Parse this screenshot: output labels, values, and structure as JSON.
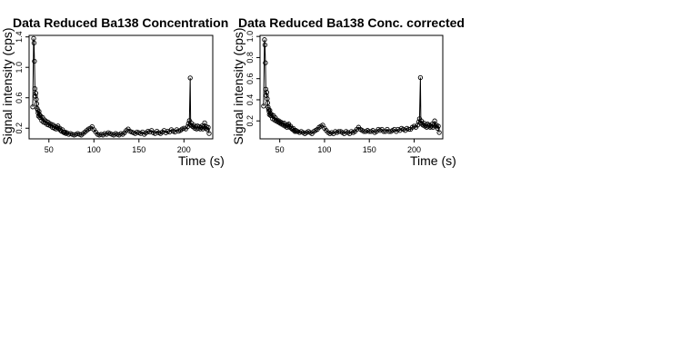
{
  "chart_data": [
    {
      "type": "scatter",
      "title": "Data Reduced Ba138 Concentration",
      "xlabel": "Time (s)",
      "ylabel": "Signal intensity (cps)",
      "xlim": [
        28,
        232
      ],
      "ylim": [
        0.06,
        1.42
      ],
      "xticks": [
        50,
        100,
        150,
        200
      ],
      "yticks": [
        0.2,
        0.6,
        1.0,
        1.4
      ],
      "xtick_labels": [
        "50",
        "100",
        "150",
        "200"
      ],
      "ytick_labels": [
        "0.2",
        "0.6",
        "1.0",
        "1.4"
      ],
      "grid": false,
      "legend": "none",
      "marker": "open-circle",
      "connected": true,
      "series": [
        {
          "points": [
            [
              32,
              0.48
            ],
            [
              33,
              1.38
            ],
            [
              33.5,
              1.32
            ],
            [
              34,
              1.08
            ],
            [
              34.5,
              0.72
            ],
            [
              35,
              0.62
            ],
            [
              35.5,
              0.66
            ],
            [
              36,
              0.58
            ],
            [
              36.5,
              0.52
            ],
            [
              37,
              0.46
            ],
            [
              37.5,
              0.44
            ],
            [
              38,
              0.4
            ],
            [
              38.5,
              0.36
            ],
            [
              39,
              0.42
            ],
            [
              39.5,
              0.38
            ],
            [
              40,
              0.34
            ],
            [
              41,
              0.36
            ],
            [
              42,
              0.3
            ],
            [
              43,
              0.34
            ],
            [
              44,
              0.28
            ],
            [
              45,
              0.31
            ],
            [
              46,
              0.27
            ],
            [
              47,
              0.29
            ],
            [
              48,
              0.25
            ],
            [
              49,
              0.28
            ],
            [
              50,
              0.24
            ],
            [
              51,
              0.26
            ],
            [
              52,
              0.23
            ],
            [
              53,
              0.25
            ],
            [
              54,
              0.21
            ],
            [
              55,
              0.24
            ],
            [
              56,
              0.2
            ],
            [
              57,
              0.22
            ],
            [
              58,
              0.19
            ],
            [
              59,
              0.21
            ],
            [
              60,
              0.23
            ],
            [
              61,
              0.19
            ],
            [
              62,
              0.2
            ],
            [
              63,
              0.17
            ],
            [
              64,
              0.16
            ],
            [
              65,
              0.18
            ],
            [
              66,
              0.15
            ],
            [
              67,
              0.14
            ],
            [
              68,
              0.15
            ],
            [
              69,
              0.13
            ],
            [
              70,
              0.14
            ],
            [
              72,
              0.12
            ],
            [
              74,
              0.13
            ],
            [
              76,
              0.12
            ],
            [
              78,
              0.11
            ],
            [
              80,
              0.12
            ],
            [
              82,
              0.13
            ],
            [
              84,
              0.12
            ],
            [
              86,
              0.11
            ],
            [
              88,
              0.13
            ],
            [
              90,
              0.15
            ],
            [
              92,
              0.17
            ],
            [
              94,
              0.19
            ],
            [
              96,
              0.2
            ],
            [
              98,
              0.22
            ],
            [
              100,
              0.18
            ],
            [
              102,
              0.15
            ],
            [
              104,
              0.12
            ],
            [
              106,
              0.11
            ],
            [
              108,
              0.12
            ],
            [
              110,
              0.11
            ],
            [
              112,
              0.13
            ],
            [
              114,
              0.12
            ],
            [
              116,
              0.14
            ],
            [
              118,
              0.13
            ],
            [
              120,
              0.12
            ],
            [
              122,
              0.11
            ],
            [
              124,
              0.13
            ],
            [
              126,
              0.12
            ],
            [
              128,
              0.11
            ],
            [
              130,
              0.13
            ],
            [
              132,
              0.12
            ],
            [
              134,
              0.14
            ],
            [
              136,
              0.17
            ],
            [
              138,
              0.19
            ],
            [
              140,
              0.16
            ],
            [
              142,
              0.15
            ],
            [
              144,
              0.14
            ],
            [
              146,
              0.13
            ],
            [
              148,
              0.15
            ],
            [
              150,
              0.14
            ],
            [
              152,
              0.13
            ],
            [
              154,
              0.15
            ],
            [
              156,
              0.12
            ],
            [
              158,
              0.14
            ],
            [
              160,
              0.16
            ],
            [
              162,
              0.15
            ],
            [
              164,
              0.17
            ],
            [
              166,
              0.14
            ],
            [
              168,
              0.13
            ],
            [
              170,
              0.16
            ],
            [
              172,
              0.14
            ],
            [
              174,
              0.13
            ],
            [
              176,
              0.15
            ],
            [
              178,
              0.17
            ],
            [
              180,
              0.14
            ],
            [
              182,
              0.16
            ],
            [
              184,
              0.15
            ],
            [
              186,
              0.18
            ],
            [
              188,
              0.16
            ],
            [
              190,
              0.15
            ],
            [
              192,
              0.18
            ],
            [
              194,
              0.16
            ],
            [
              196,
              0.17
            ],
            [
              198,
              0.19
            ],
            [
              200,
              0.2
            ],
            [
              202,
              0.19
            ],
            [
              204,
              0.22
            ],
            [
              205,
              0.26
            ],
            [
              206,
              0.3
            ],
            [
              207,
              0.86
            ],
            [
              207.5,
              0.24
            ],
            [
              208,
              0.27
            ],
            [
              209,
              0.23
            ],
            [
              210,
              0.22
            ],
            [
              211,
              0.24
            ],
            [
              212,
              0.2
            ],
            [
              213,
              0.22
            ],
            [
              214,
              0.19
            ],
            [
              215,
              0.23
            ],
            [
              216,
              0.2
            ],
            [
              217,
              0.22
            ],
            [
              218,
              0.19
            ],
            [
              219,
              0.21
            ],
            [
              220,
              0.23
            ],
            [
              221,
              0.19
            ],
            [
              222,
              0.22
            ],
            [
              223,
              0.27
            ],
            [
              224,
              0.2
            ],
            [
              225,
              0.22
            ],
            [
              226,
              0.18
            ],
            [
              227,
              0.21
            ],
            [
              228,
              0.13
            ]
          ]
        }
      ]
    },
    {
      "type": "scatter",
      "title": "Data Reduced Ba138 Conc. corrected",
      "xlabel": "Time (s)",
      "ylabel": "Signal intensity (cps)",
      "xlim": [
        28,
        232
      ],
      "ylim": [
        0.03,
        1.01
      ],
      "xticks": [
        50,
        100,
        150,
        200
      ],
      "yticks": [
        0.2,
        0.4,
        0.6,
        0.8,
        1.0
      ],
      "xtick_labels": [
        "50",
        "100",
        "150",
        "200"
      ],
      "ytick_labels": [
        "0.2",
        "0.4",
        "0.6",
        "0.8",
        "1.0"
      ],
      "grid": false,
      "legend": "none",
      "marker": "open-circle",
      "connected": true,
      "series": [
        {
          "points": [
            [
              32,
              0.34
            ],
            [
              33,
              0.97
            ],
            [
              33.5,
              0.92
            ],
            [
              34,
              0.75
            ],
            [
              34.5,
              0.5
            ],
            [
              35,
              0.44
            ],
            [
              35.5,
              0.47
            ],
            [
              36,
              0.41
            ],
            [
              36.5,
              0.37
            ],
            [
              37,
              0.33
            ],
            [
              37.5,
              0.31
            ],
            [
              38,
              0.29
            ],
            [
              38.5,
              0.26
            ],
            [
              39,
              0.3
            ],
            [
              39.5,
              0.27
            ],
            [
              40,
              0.25
            ],
            [
              41,
              0.26
            ],
            [
              42,
              0.22
            ],
            [
              43,
              0.25
            ],
            [
              44,
              0.21
            ],
            [
              45,
              0.23
            ],
            [
              46,
              0.2
            ],
            [
              47,
              0.21
            ],
            [
              48,
              0.19
            ],
            [
              49,
              0.2
            ],
            [
              50,
              0.18
            ],
            [
              51,
              0.19
            ],
            [
              52,
              0.17
            ],
            [
              53,
              0.18
            ],
            [
              54,
              0.16
            ],
            [
              55,
              0.18
            ],
            [
              56,
              0.15
            ],
            [
              57,
              0.16
            ],
            [
              58,
              0.14
            ],
            [
              59,
              0.16
            ],
            [
              60,
              0.17
            ],
            [
              61,
              0.14
            ],
            [
              62,
              0.15
            ],
            [
              63,
              0.13
            ],
            [
              64,
              0.12
            ],
            [
              65,
              0.13
            ],
            [
              66,
              0.11
            ],
            [
              67,
              0.1
            ],
            [
              68,
              0.11
            ],
            [
              69,
              0.1
            ],
            [
              70,
              0.1
            ],
            [
              72,
              0.09
            ],
            [
              74,
              0.1
            ],
            [
              76,
              0.09
            ],
            [
              78,
              0.08
            ],
            [
              80,
              0.09
            ],
            [
              82,
              0.1
            ],
            [
              84,
              0.09
            ],
            [
              86,
              0.08
            ],
            [
              88,
              0.1
            ],
            [
              90,
              0.11
            ],
            [
              92,
              0.12
            ],
            [
              94,
              0.14
            ],
            [
              96,
              0.15
            ],
            [
              98,
              0.16
            ],
            [
              100,
              0.13
            ],
            [
              102,
              0.11
            ],
            [
              104,
              0.09
            ],
            [
              106,
              0.08
            ],
            [
              108,
              0.09
            ],
            [
              110,
              0.08
            ],
            [
              112,
              0.1
            ],
            [
              114,
              0.09
            ],
            [
              116,
              0.1
            ],
            [
              118,
              0.1
            ],
            [
              120,
              0.09
            ],
            [
              122,
              0.08
            ],
            [
              124,
              0.1
            ],
            [
              126,
              0.09
            ],
            [
              128,
              0.08
            ],
            [
              130,
              0.1
            ],
            [
              132,
              0.09
            ],
            [
              134,
              0.1
            ],
            [
              136,
              0.12
            ],
            [
              138,
              0.14
            ],
            [
              140,
              0.12
            ],
            [
              142,
              0.11
            ],
            [
              144,
              0.1
            ],
            [
              146,
              0.1
            ],
            [
              148,
              0.11
            ],
            [
              150,
              0.1
            ],
            [
              152,
              0.1
            ],
            [
              154,
              0.11
            ],
            [
              156,
              0.09
            ],
            [
              158,
              0.1
            ],
            [
              160,
              0.12
            ],
            [
              162,
              0.11
            ],
            [
              164,
              0.12
            ],
            [
              166,
              0.1
            ],
            [
              168,
              0.1
            ],
            [
              170,
              0.12
            ],
            [
              172,
              0.1
            ],
            [
              174,
              0.1
            ],
            [
              176,
              0.11
            ],
            [
              178,
              0.12
            ],
            [
              180,
              0.1
            ],
            [
              182,
              0.12
            ],
            [
              184,
              0.11
            ],
            [
              186,
              0.13
            ],
            [
              188,
              0.12
            ],
            [
              190,
              0.11
            ],
            [
              192,
              0.13
            ],
            [
              194,
              0.12
            ],
            [
              196,
              0.12
            ],
            [
              198,
              0.14
            ],
            [
              200,
              0.15
            ],
            [
              202,
              0.14
            ],
            [
              204,
              0.16
            ],
            [
              205,
              0.19
            ],
            [
              206,
              0.22
            ],
            [
              207,
              0.61
            ],
            [
              207.5,
              0.18
            ],
            [
              208,
              0.2
            ],
            [
              209,
              0.17
            ],
            [
              210,
              0.16
            ],
            [
              211,
              0.18
            ],
            [
              212,
              0.15
            ],
            [
              213,
              0.16
            ],
            [
              214,
              0.14
            ],
            [
              215,
              0.17
            ],
            [
              216,
              0.15
            ],
            [
              217,
              0.16
            ],
            [
              218,
              0.14
            ],
            [
              219,
              0.15
            ],
            [
              220,
              0.17
            ],
            [
              221,
              0.14
            ],
            [
              222,
              0.16
            ],
            [
              223,
              0.2
            ],
            [
              224,
              0.15
            ],
            [
              225,
              0.16
            ],
            [
              226,
              0.13
            ],
            [
              227,
              0.15
            ],
            [
              228,
              0.09
            ]
          ]
        }
      ]
    }
  ]
}
